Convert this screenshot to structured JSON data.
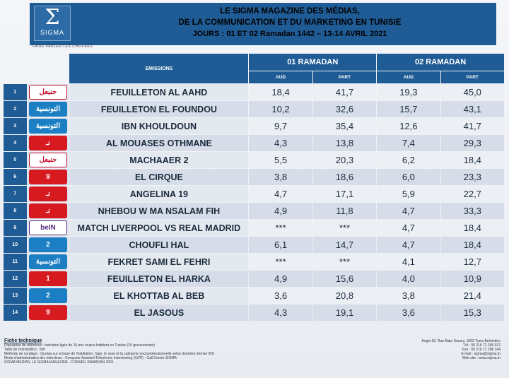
{
  "header": {
    "logo_text": "SIGMA",
    "tagline": "FAIRE PARLER LES CHIFFRES",
    "title_line1": "LE SIGMA MAGAZINE DES MÉDIAS,",
    "title_line2": "DE LA COMMUNICATION ET DU MARKETING EN TUNISIE",
    "title_line3": "JOURS : 01 ET 02 Ramadan 1442 – 13-14 AVRIL 2021"
  },
  "table": {
    "col_emissions": "EMISSIONS",
    "day1": "01 RAMADAN",
    "day2": "02 RAMADAN",
    "sub_aud": "AUD",
    "sub_part": "PART",
    "rows": [
      {
        "n": "1",
        "channel": "Hannibal TV",
        "channel_label": "حنبعل",
        "logo_color": "#c8102e",
        "logo_bg": "#ffffff",
        "name": "FEUILLETON AL AAHD",
        "aud1": "18,4",
        "part1": "41,7",
        "aud2": "19,3",
        "part2": "45,0"
      },
      {
        "n": "2",
        "channel": "Attessia TV",
        "channel_label": "التونسية",
        "logo_color": "#ffffff",
        "logo_bg": "#1c7fc4",
        "name": "FEUILLETON EL FOUNDOU",
        "aud1": "10,2",
        "part1": "32,6",
        "aud2": "15,7",
        "part2": "43,1"
      },
      {
        "n": "3",
        "channel": "Attessia TV",
        "channel_label": "التونسية",
        "logo_color": "#ffffff",
        "logo_bg": "#1c7fc4",
        "name": "IBN KHOULDOUN",
        "aud1": "9,7",
        "part1": "35,4",
        "aud2": "12,6",
        "part2": "41,7"
      },
      {
        "n": "4",
        "channel": "Nessma",
        "channel_label": "نـ",
        "logo_color": "#ffffff",
        "logo_bg": "#d71920",
        "name": "AL MOUASES OTHMANE",
        "aud1": "4,3",
        "part1": "13,8",
        "aud2": "7,4",
        "part2": "29,3"
      },
      {
        "n": "5",
        "channel": "Hannibal TV",
        "channel_label": "حنبعل",
        "logo_color": "#c8102e",
        "logo_bg": "#ffffff",
        "name": "MACHAAER 2",
        "aud1": "5,5",
        "part1": "20,3",
        "aud2": "6,2",
        "part2": "18,4"
      },
      {
        "n": "6",
        "channel": "El Hiwar Ettounsi",
        "channel_label": "9",
        "logo_color": "#ffffff",
        "logo_bg": "#d71920",
        "name": "EL CIRQUE",
        "aud1": "3,8",
        "part1": "18,6",
        "aud2": "6,0",
        "part2": "23,3"
      },
      {
        "n": "7",
        "channel": "Nessma",
        "channel_label": "نـ",
        "logo_color": "#ffffff",
        "logo_bg": "#d71920",
        "name": "ANGELINA 19",
        "aud1": "4,7",
        "part1": "17,1",
        "aud2": "5,9",
        "part2": "22,7"
      },
      {
        "n": "8",
        "channel": "Nessma",
        "channel_label": "نـ",
        "logo_color": "#ffffff",
        "logo_bg": "#d71920",
        "name": "NHEBOU W MA NSALAM FIH",
        "aud1": "4,9",
        "part1": "11,8",
        "aud2": "4,7",
        "part2": "33,3"
      },
      {
        "n": "9",
        "channel": "beIN",
        "channel_label": "beIN",
        "logo_color": "#5b2d82",
        "logo_bg": "#ffffff",
        "name": "MATCH LIVERPOOL VS REAL MADRID",
        "aud1": "***",
        "part1": "***",
        "aud2": "4,7",
        "part2": "18,4"
      },
      {
        "n": "10",
        "channel": "Wataniya 2",
        "channel_label": "2",
        "logo_color": "#ffffff",
        "logo_bg": "#1c7fc4",
        "name": "CHOUFLI HAL",
        "aud1": "6,1",
        "part1": "14,7",
        "aud2": "4,7",
        "part2": "18,4"
      },
      {
        "n": "11",
        "channel": "Attessia TV",
        "channel_label": "التونسية",
        "logo_color": "#ffffff",
        "logo_bg": "#1c7fc4",
        "name": "FEKRET SAMI EL FEHRI",
        "aud1": "***",
        "part1": "***",
        "aud2": "4,1",
        "part2": "12,7"
      },
      {
        "n": "12",
        "channel": "Wataniya 1",
        "channel_label": "1",
        "logo_color": "#ffffff",
        "logo_bg": "#d71920",
        "name": "FEUILLETON EL HARKA",
        "aud1": "4,9",
        "part1": "15,6",
        "aud2": "4,0",
        "part2": "10,9"
      },
      {
        "n": "13",
        "channel": "Wataniya 2",
        "channel_label": "2",
        "logo_color": "#ffffff",
        "logo_bg": "#1c7fc4",
        "name": "EL KHOTTAB AL BEB",
        "aud1": "3,6",
        "part1": "20,8",
        "aud2": "3,8",
        "part2": "21,4"
      },
      {
        "n": "14",
        "channel": "El Hiwar Ettounsi",
        "channel_label": "9",
        "logo_color": "#ffffff",
        "logo_bg": "#d71920",
        "name": "EL JASOUS",
        "aud1": "4,3",
        "part1": "19,1",
        "aud2": "3,6",
        "part2": "15,3"
      }
    ]
  },
  "footer": {
    "title": "Fiche technique",
    "lines": [
      "Population de référence : Individus âgés de 15 ans et plus habitant en Tunisie (24 gouvernorats)",
      "Taille de l'échantillon : 500",
      "Méthode de sondage : Quotas sur la base de l'habitation, l'âge, le sexe et la catégorie socioprofessionnelle selon données dernier INS",
      "Mode d'administration des interviews : Computer Assisted Telephonic Interviewing (CATI) - Call Center SIGMA",
      "SIGMA MEDIAS, LE SIGMA MAGAZINE : CONSEIL RAMADAN 2021"
    ],
    "right_lines": [
      "Angle 62, Rue Alain Savary, 1002 Tunis Belvédère",
      "Tél : 00 216 71 286 927",
      "Fax : 00 216 71 286 144",
      "E-mail : sigma@sigma.tn",
      "Web site : www.sigma.tn"
    ]
  }
}
